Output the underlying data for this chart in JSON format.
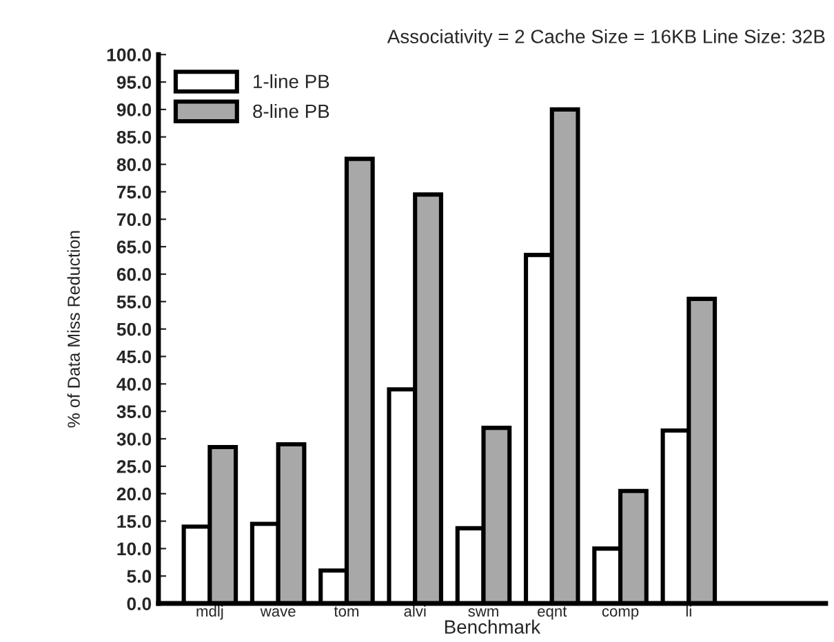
{
  "chart_data": {
    "type": "bar",
    "title": "Associativity = 2 Cache Size = 16KB Line Size: 32B",
    "xlabel": "Benchmark",
    "ylabel": "% of Data Miss Reduction",
    "categories": [
      "mdlj",
      "wave",
      "tom",
      "alvi",
      "swm",
      "eqnt",
      "comp",
      "li"
    ],
    "series": [
      {
        "name": "1-line PB",
        "color": "#ffffff",
        "values": [
          14.0,
          14.5,
          6.0,
          39.0,
          13.7,
          63.5,
          10.0,
          31.5
        ]
      },
      {
        "name": "8-line PB",
        "color": "#a8a8a8",
        "values": [
          28.5,
          29.0,
          81.0,
          74.5,
          32.0,
          90.0,
          20.5,
          55.5
        ]
      }
    ],
    "ylim": [
      0,
      100
    ],
    "yticks": [
      {
        "value": 0,
        "label": "0.0"
      },
      {
        "value": 5,
        "label": "5.0"
      },
      {
        "value": 10,
        "label": "10.0"
      },
      {
        "value": 15,
        "label": "15.0"
      },
      {
        "value": 20,
        "label": "20.0"
      },
      {
        "value": 25,
        "label": "25.0"
      },
      {
        "value": 30,
        "label": "30.0"
      },
      {
        "value": 35,
        "label": "35.0"
      },
      {
        "value": 40,
        "label": "40.0"
      },
      {
        "value": 45,
        "label": "45.0"
      },
      {
        "value": 50,
        "label": "50.0"
      },
      {
        "value": 55,
        "label": "55.0"
      },
      {
        "value": 60,
        "label": "60.0"
      },
      {
        "value": 65,
        "label": "65.0"
      },
      {
        "value": 70,
        "label": "70.0"
      },
      {
        "value": 75,
        "label": "75.0"
      },
      {
        "value": 80,
        "label": "80.0"
      },
      {
        "value": 85,
        "label": "85.0"
      },
      {
        "value": 90,
        "label": "90.0"
      },
      {
        "value": 95,
        "label": "95.0"
      },
      {
        "value": 100,
        "label": "100.0"
      }
    ],
    "grid": false,
    "legend": "top left"
  }
}
